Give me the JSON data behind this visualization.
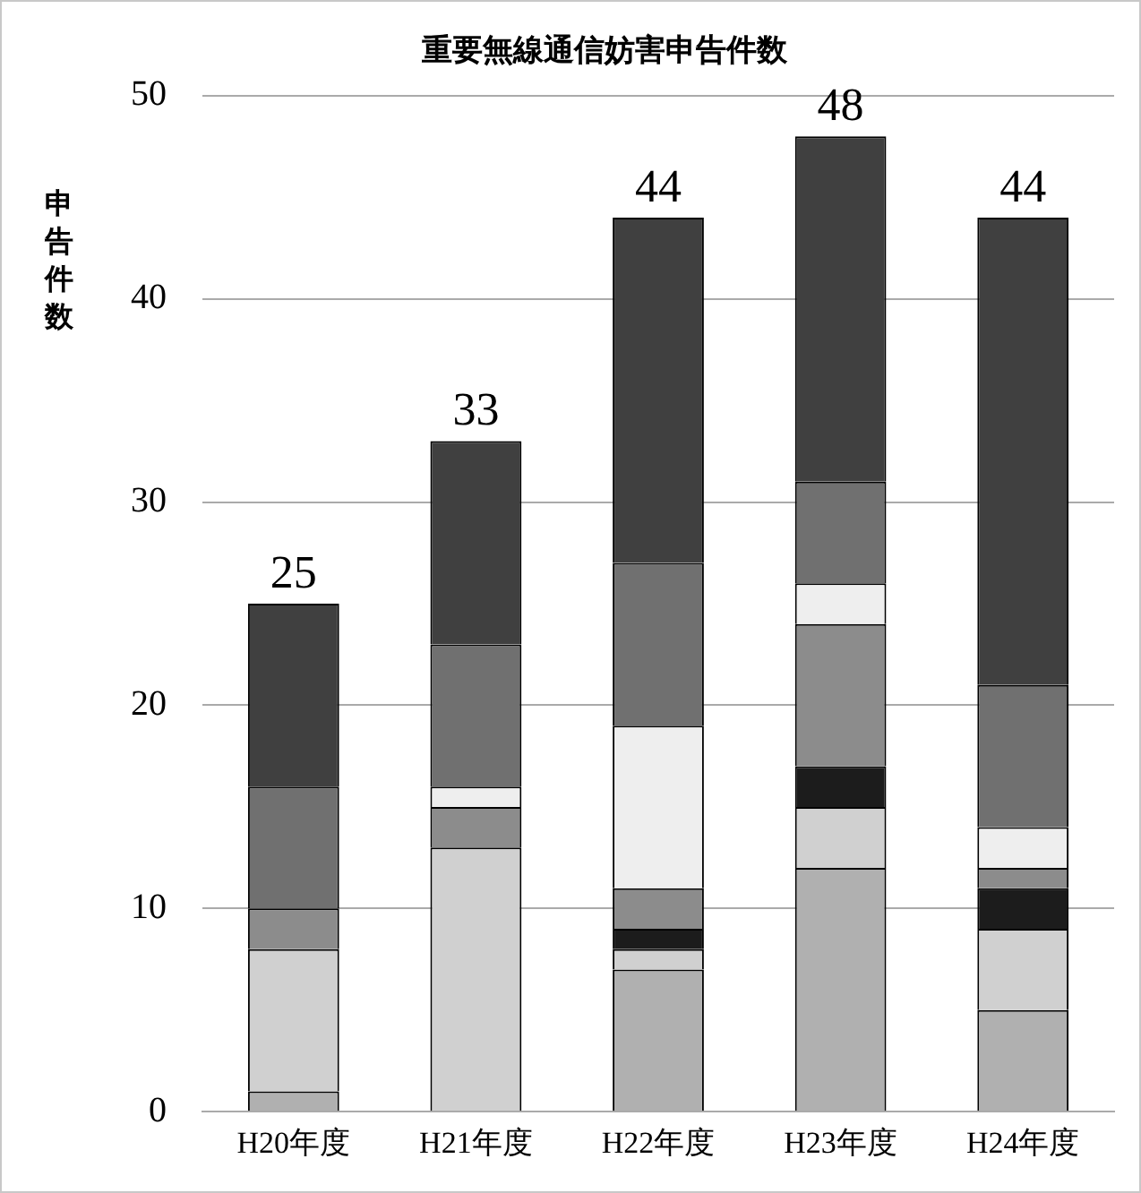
{
  "chart_data": {
    "type": "bar",
    "stacked": true,
    "title": "重要無線通信妨害申告件数",
    "ylabel": "申告件数",
    "categories": [
      "H20年度",
      "H21年度",
      "H22年度",
      "H23年度",
      "H24年度"
    ],
    "series": [
      {
        "color": "#b0b0b0",
        "values": [
          1,
          0,
          7,
          12,
          5
        ]
      },
      {
        "color": "#d0d0d0",
        "values": [
          7,
          13,
          1,
          3,
          4
        ]
      },
      {
        "color": "#1c1c1c",
        "values": [
          0,
          0,
          1,
          2,
          2
        ]
      },
      {
        "color": "#8c8c8c",
        "values": [
          2,
          2,
          2,
          7,
          1
        ]
      },
      {
        "color": "#eeeeee",
        "values": [
          0,
          1,
          8,
          2,
          2
        ]
      },
      {
        "color": "#707070",
        "values": [
          6,
          7,
          8,
          5,
          7
        ]
      },
      {
        "color": "#404040",
        "values": [
          9,
          10,
          17,
          17,
          23
        ]
      }
    ],
    "totals": [
      "25",
      "33",
      "44",
      "48",
      "44"
    ],
    "ylim": [
      0,
      50
    ],
    "yticks": [
      0,
      10,
      20,
      30,
      40,
      50
    ],
    "grid": "y",
    "legend": false
  }
}
